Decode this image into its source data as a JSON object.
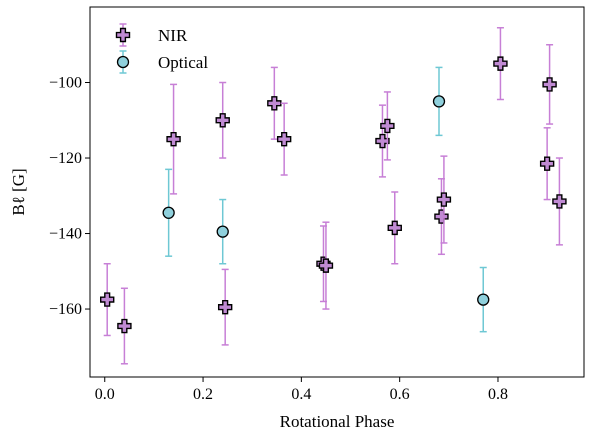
{
  "chart_data": {
    "type": "scatter",
    "xlabel": "Rotational Phase",
    "ylabel": "Bℓ [G]",
    "xlim": [
      -0.03,
      0.975
    ],
    "ylim": [
      -178,
      -80
    ],
    "xticks": [
      0.0,
      0.2,
      0.4,
      0.6,
      0.8
    ],
    "xtick_labels": [
      "0.0",
      "0.2",
      "0.4",
      "0.6",
      "0.8"
    ],
    "yticks": [
      -160,
      -140,
      -120,
      -100
    ],
    "ytick_labels": [
      "−160",
      "−140",
      "−120",
      "−100"
    ],
    "grid": false,
    "legend_position": "top-left",
    "series": [
      {
        "name": "NIR",
        "marker": "plus",
        "color": "#c77fd6",
        "marker_fill": "#c08ad3",
        "points": [
          {
            "x": 0.005,
            "y": -157.5,
            "err": 9.5
          },
          {
            "x": 0.04,
            "y": -164.5,
            "err": 10
          },
          {
            "x": 0.14,
            "y": -115,
            "err": 14.5
          },
          {
            "x": 0.24,
            "y": -110,
            "err": 10
          },
          {
            "x": 0.245,
            "y": -159.5,
            "err": 10
          },
          {
            "x": 0.345,
            "y": -105.5,
            "err": 9.5
          },
          {
            "x": 0.365,
            "y": -115,
            "err": 9.5
          },
          {
            "x": 0.445,
            "y": -148,
            "err": 10
          },
          {
            "x": 0.45,
            "y": -148.5,
            "err": 11.5
          },
          {
            "x": 0.565,
            "y": -115.5,
            "err": 9.5
          },
          {
            "x": 0.575,
            "y": -111.5,
            "err": 9
          },
          {
            "x": 0.59,
            "y": -138.5,
            "err": 9.5
          },
          {
            "x": 0.685,
            "y": -135.5,
            "err": 10
          },
          {
            "x": 0.69,
            "y": -131,
            "err": 11.5
          },
          {
            "x": 0.805,
            "y": -95,
            "err": 9.5
          },
          {
            "x": 0.9,
            "y": -121.5,
            "err": 9.5
          },
          {
            "x": 0.905,
            "y": -100.5,
            "err": 10.5
          },
          {
            "x": 0.925,
            "y": -131.5,
            "err": 11.5
          }
        ]
      },
      {
        "name": "Optical",
        "marker": "circle",
        "color": "#6ec8d4",
        "marker_fill": "#8fd0dc",
        "points": [
          {
            "x": 0.13,
            "y": -134.5,
            "err": 11.5
          },
          {
            "x": 0.24,
            "y": -139.5,
            "err": 8.5
          },
          {
            "x": 0.68,
            "y": -105,
            "err": 9
          },
          {
            "x": 0.77,
            "y": -157.5,
            "err": 8.5
          }
        ]
      }
    ]
  }
}
